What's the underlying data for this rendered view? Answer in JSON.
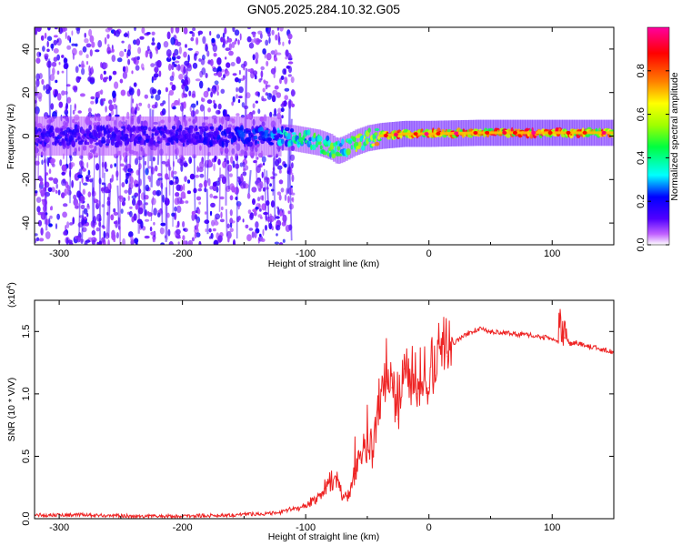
{
  "figure": {
    "title": "GN05.2025.284.10.32.G05"
  },
  "chart_data": [
    {
      "type": "heatmap",
      "title": "GN05.2025.284.10.32.G05",
      "xlabel": "Height of straight line (km)",
      "ylabel": "Frequency (Hz)",
      "xlim": [
        -320,
        150
      ],
      "ylim": [
        -50,
        50
      ],
      "x_ticks": [
        -300,
        -200,
        -100,
        0,
        100
      ],
      "x_tick_labels": [
        "-300",
        "-200",
        "-100",
        "0",
        "100"
      ],
      "y_ticks": [
        -40,
        -20,
        0,
        20,
        40
      ],
      "y_tick_labels": [
        "-40",
        "-20",
        "0",
        "20",
        "40"
      ],
      "colorbar": {
        "label": "Normalized spectral amplitude",
        "range": [
          0,
          1
        ],
        "ticks": [
          0.0,
          0.2,
          0.4,
          0.6,
          0.8
        ],
        "tick_labels": [
          "0.0",
          "0.2",
          "0.4",
          "0.6",
          "0.8"
        ],
        "colors": [
          "#ffffff",
          "#c060ff",
          "#5000ff",
          "#0000ff",
          "#00ffff",
          "#00ff40",
          "#a0ff00",
          "#ffff00",
          "#ff8000",
          "#ff0000",
          "#ff00a0"
        ]
      },
      "ridge": {
        "x": [
          -320,
          -200,
          -130,
          -110,
          -100,
          -90,
          -80,
          -75,
          -70,
          -60,
          -50,
          -40,
          -30,
          -20,
          0,
          40,
          100,
          150
        ],
        "freq_hz": [
          0,
          0,
          0,
          -1,
          -2,
          -3,
          -5,
          -7,
          -6,
          -3,
          -1,
          0,
          0.5,
          1,
          1,
          1.5,
          1.5,
          1.5
        ],
        "amplitude": [
          0.18,
          0.18,
          0.25,
          0.4,
          0.45,
          0.5,
          0.48,
          0.55,
          0.5,
          0.55,
          0.6,
          0.75,
          0.85,
          0.9,
          0.8,
          0.85,
          0.9,
          0.8
        ]
      }
    },
    {
      "type": "line",
      "xlabel": "Height of straight line (km)",
      "ylabel": "SNR (10 * V/V)",
      "y_multiplier_label": "(x10",
      "y_multiplier_exp": "4",
      "y_multiplier_close": ")",
      "xlim": [
        -320,
        150
      ],
      "ylim": [
        0,
        1.75
      ],
      "x_ticks": [
        -300,
        -200,
        -100,
        0,
        100
      ],
      "x_tick_labels": [
        "-300",
        "-200",
        "-100",
        "0",
        "100"
      ],
      "y_ticks": [
        0,
        0.5,
        1.0,
        1.5
      ],
      "y_tick_labels": [
        "0.0",
        "0.5",
        "1.0",
        "1.5"
      ],
      "color": "#ee2222",
      "series": [
        {
          "name": "SNR",
          "x": [
            -320,
            -280,
            -240,
            -200,
            -160,
            -140,
            -130,
            -120,
            -110,
            -100,
            -95,
            -90,
            -85,
            -80,
            -75,
            -70,
            -65,
            -60,
            -55,
            -50,
            -45,
            -40,
            -35,
            -30,
            -25,
            -20,
            -15,
            -10,
            -5,
            0,
            5,
            10,
            15,
            20,
            30,
            40,
            50,
            60,
            70,
            80,
            90,
            100,
            105,
            110,
            115,
            120,
            130,
            140,
            150
          ],
          "values": [
            0.03,
            0.03,
            0.02,
            0.02,
            0.03,
            0.04,
            0.04,
            0.05,
            0.08,
            0.1,
            0.14,
            0.18,
            0.24,
            0.3,
            0.33,
            0.16,
            0.2,
            0.36,
            0.45,
            0.55,
            0.5,
            0.85,
            1.1,
            1.05,
            0.8,
            1.2,
            1.05,
            1.0,
            1.0,
            1.05,
            1.15,
            1.35,
            1.3,
            1.4,
            1.48,
            1.52,
            1.5,
            1.49,
            1.48,
            1.47,
            1.46,
            1.44,
            1.42,
            1.45,
            1.4,
            1.41,
            1.38,
            1.36,
            1.33
          ]
        }
      ]
    }
  ]
}
